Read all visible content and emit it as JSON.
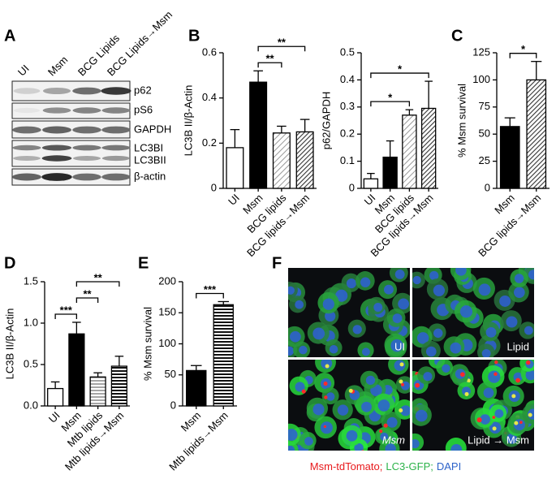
{
  "panel_labels": [
    "A",
    "B",
    "C",
    "D",
    "E",
    "F"
  ],
  "blot": {
    "lanes": [
      "UI",
      "Msm",
      "BCG Lipids",
      "BCG Lipids→Msm"
    ],
    "bands": [
      "p62",
      "pS6",
      "GAPDH",
      "LC3BI",
      "LC3BII",
      "β-actin"
    ]
  },
  "chart_data": [
    {
      "type": "bar",
      "y_label": "LC3B II/β-Actin",
      "categories": [
        "UI",
        "Msm",
        "BCG lipids",
        "BCG lipids→Msm"
      ],
      "values": [
        0.18,
        0.47,
        0.245,
        0.25
      ],
      "errors": [
        0.08,
        0.05,
        0.03,
        0.055
      ],
      "fills": [
        "white",
        "black",
        "diagonal-light",
        "diagonal-dark"
      ],
      "ylim": [
        0,
        0.6
      ],
      "yticks": [
        0,
        0.2,
        0.4,
        0.6
      ],
      "significance": [
        {
          "from": 1,
          "to": 2,
          "label": "**"
        },
        {
          "from": 1,
          "to": 3,
          "label": "**"
        }
      ]
    },
    {
      "type": "bar",
      "y_label": "p62/GAPDH",
      "categories": [
        "UI",
        "Msm",
        "BCG lipids",
        "BCG lipids→Msm"
      ],
      "values": [
        0.035,
        0.115,
        0.27,
        0.295
      ],
      "errors": [
        0.02,
        0.06,
        0.02,
        0.1
      ],
      "fills": [
        "white",
        "black",
        "diagonal-light",
        "diagonal-dark"
      ],
      "ylim": [
        0,
        0.5
      ],
      "yticks": [
        0,
        0.1,
        0.2,
        0.3,
        0.4,
        0.5
      ],
      "significance": [
        {
          "from": 0,
          "to": 2,
          "label": "*"
        },
        {
          "from": 0,
          "to": 3,
          "label": "*"
        }
      ]
    },
    {
      "type": "bar",
      "y_label": "% Msm survival",
      "categories": [
        "Msm",
        "BCG lipids→Msm"
      ],
      "values": [
        57,
        100
      ],
      "errors": [
        8,
        17
      ],
      "fills": [
        "black",
        "diagonal-dark"
      ],
      "ylim": [
        0,
        125
      ],
      "yticks": [
        0,
        25,
        50,
        75,
        100,
        125
      ],
      "significance": [
        {
          "from": 0,
          "to": 1,
          "label": "*"
        }
      ]
    },
    {
      "type": "bar",
      "y_label": "LC3B II/β-Actin",
      "categories": [
        "UI",
        "Msm",
        "Mtb lipids",
        "Mtb lipids→Msm"
      ],
      "values": [
        0.21,
        0.87,
        0.35,
        0.48
      ],
      "errors": [
        0.08,
        0.14,
        0.05,
        0.12
      ],
      "fills": [
        "white",
        "black",
        "horizontal-light",
        "horizontal-dark"
      ],
      "ylim": [
        0,
        1.5
      ],
      "yticks": [
        {
          "value": 0,
          "label": "0.0"
        },
        0.5,
        {
          "value": 1,
          "label": "1.0"
        },
        1.5
      ],
      "significance": [
        {
          "from": 0,
          "to": 1,
          "label": "***"
        },
        {
          "from": 1,
          "to": 2,
          "label": "**"
        },
        {
          "from": 1,
          "to": 3,
          "label": "**"
        }
      ]
    },
    {
      "type": "bar",
      "y_label": "% Msm survival",
      "categories": [
        "Msm",
        "Mtb lipids→Msm"
      ],
      "values": [
        57,
        163
      ],
      "errors": [
        8,
        5
      ],
      "fills": [
        "black",
        "horizontal-dark"
      ],
      "ylim": [
        0,
        200
      ],
      "yticks": [
        0,
        50,
        100,
        150,
        200
      ],
      "significance": [
        {
          "from": 0,
          "to": 1,
          "label": "***"
        }
      ]
    }
  ],
  "micrographs": {
    "panels": [
      "UI",
      "Lipid",
      "Msm",
      "Lipid → Msm"
    ],
    "legend": [
      {
        "text": "Msm-tdTomato;",
        "color": "#e8191c"
      },
      {
        "text": "LC3-GFP;",
        "color": "#2db34a"
      },
      {
        "text": "DAPI",
        "color": "#2c62c9"
      }
    ]
  }
}
